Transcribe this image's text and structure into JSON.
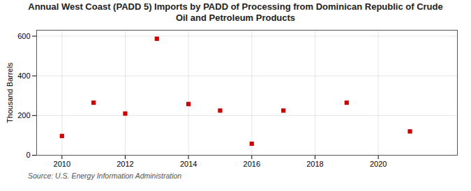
{
  "chart_data": {
    "type": "scatter",
    "title": "Annual West Coast (PADD 5) Imports by PADD of Processing from Dominican Republic of Crude\nOil and Petroleum Products",
    "ylabel": "Thousand Barrels",
    "annotations": [
      "Source: U.S. Energy Information Administration"
    ],
    "x": [
      2010,
      2011,
      2012,
      2013,
      2014,
      2015,
      2016,
      2017,
      2019,
      2021
    ],
    "values": [
      97,
      265,
      210,
      587,
      258,
      225,
      58,
      225,
      265,
      120
    ],
    "color": "#cc0000",
    "marker": "square",
    "xlim": [
      2009.2,
      2022.5
    ],
    "ylim": [
      0,
      630
    ],
    "xticks": [
      2010,
      2012,
      2014,
      2016,
      2018,
      2020
    ],
    "yticks": [
      0,
      200,
      400,
      600
    ],
    "grid": true
  }
}
